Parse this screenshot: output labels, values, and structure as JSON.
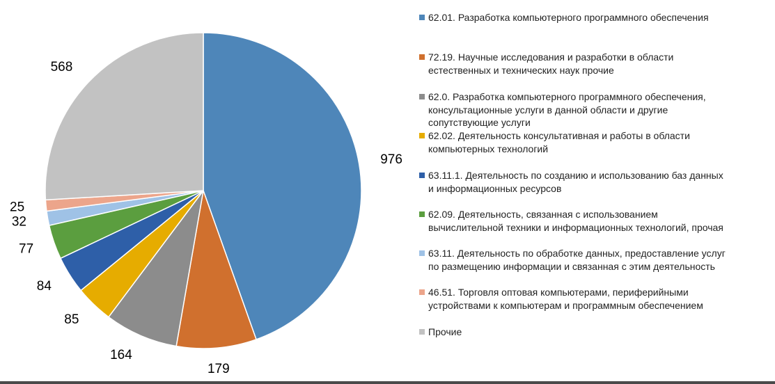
{
  "chart_data": {
    "type": "pie",
    "title": "",
    "start_angle_deg": 0,
    "direction": "clockwise",
    "slices": [
      {
        "label": "62.01. Разработка компьютерного программного обеспечения",
        "value": 976,
        "color": "#4e86b9"
      },
      {
        "label": "72.19. Научные исследования и разработки в области\nестественных и технических  наук прочие",
        "value": 179,
        "color": "#d0702e"
      },
      {
        "label": "62.0. Разработка компьютерного программного обеспечения,\nконсультационные  услуги в данной области и другие\nсопутствующие  услуги",
        "value": 164,
        "color": "#8c8c8c"
      },
      {
        "label": "62.02. Деятельность консультативная  и работы в области\nкомпьютерных технологий",
        "value": 85,
        "color": "#e6ac00"
      },
      {
        "label": "63.11.1. Деятельность по созданию и использованию  баз данных\nи информационных  ресурсов",
        "value": 84,
        "color": "#2e5fa8"
      },
      {
        "label": "62.09. Деятельность, связанная с использованием\nвычислительной  техники и информационных  технологий,  прочая",
        "value": 77,
        "color": "#5b9e3f"
      },
      {
        "label": "63.11. Деятельность по обработке данных, предоставление услуг\nпо размещению  информации и связанная с этим деятельность",
        "value": 32,
        "color": "#9fc2e6"
      },
      {
        "label": "46.51. Торговля оптовая компьютерами, периферийными\nустройствами к компьютерам и программным обеспечением",
        "value": 25,
        "color": "#eca58b"
      },
      {
        "label": "Прочие",
        "value": 568,
        "color": "#c2c2c2"
      }
    ],
    "legend_position": "right"
  }
}
